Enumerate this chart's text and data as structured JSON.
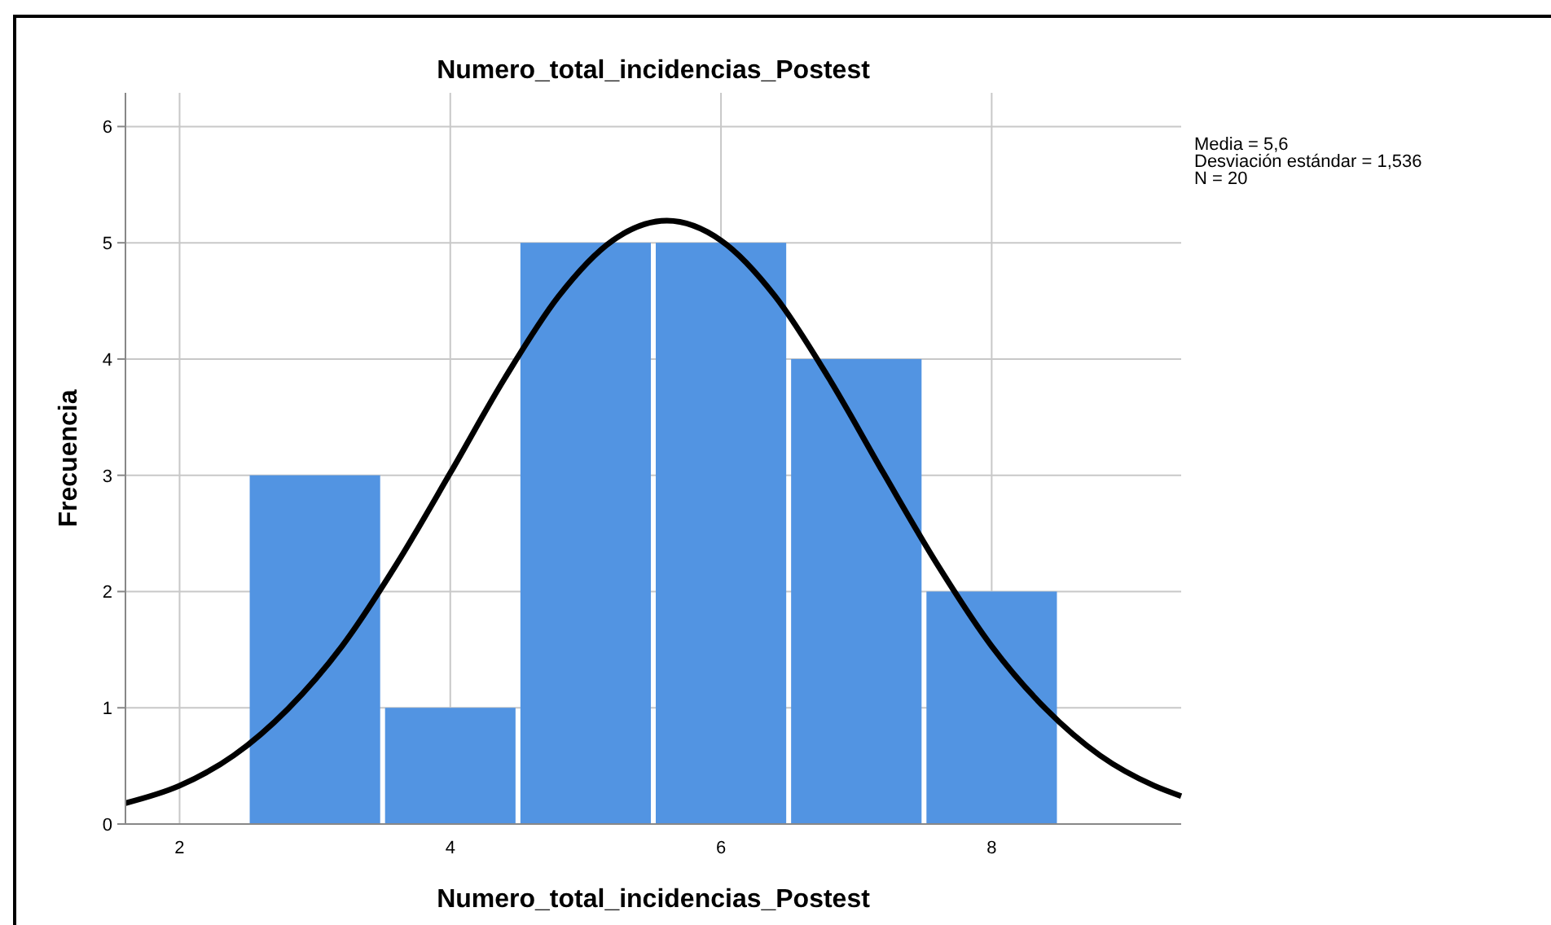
{
  "chart_data": {
    "type": "histogram",
    "title": "Numero_total_incidencias_Postest",
    "xlabel": "Numero_total_incidencias_Postest",
    "ylabel": "Frecuencia",
    "bins": [
      2.5,
      3.5,
      4.5,
      5.5,
      6.5,
      7.5,
      8.5
    ],
    "values": [
      3,
      1,
      5,
      5,
      4,
      2
    ],
    "color": "#5294e2",
    "series": [
      {
        "type": "line",
        "color": "#000000",
        "x": [
          1.6,
          2.0,
          2.4,
          2.8,
          3.2,
          3.6,
          4.0,
          4.4,
          4.8,
          5.2,
          5.6,
          6.0,
          6.4,
          6.8,
          7.2,
          7.6,
          8.0,
          8.4,
          8.8,
          9.2,
          9.4
        ],
        "values": [
          0.18,
          0.33,
          0.59,
          0.99,
          1.53,
          2.23,
          3.02,
          3.83,
          4.54,
          5.02,
          5.19,
          5.02,
          4.54,
          3.83,
          3.02,
          2.23,
          1.53,
          0.99,
          0.59,
          0.33,
          0.24
        ]
      }
    ],
    "xlim": [
      1.6,
      9.4
    ],
    "xticks": [
      2,
      4,
      6,
      8
    ],
    "ylim": [
      0,
      6.29
    ],
    "yticks": [
      0,
      1,
      2,
      3,
      4,
      5,
      6
    ],
    "grid": true,
    "marker": "none",
    "line_style": "solid",
    "annotations": [
      "Media = 5,6",
      "Desviación estándar = 1,536",
      "N = 20"
    ]
  }
}
